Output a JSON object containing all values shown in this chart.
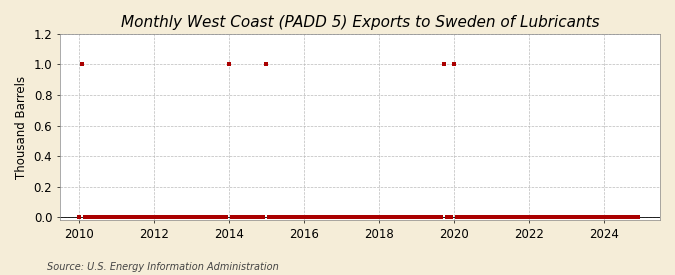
{
  "title": "Monthly West Coast (PADD 5) Exports to Sweden of Lubricants",
  "ylabel": "Thousand Barrels",
  "source": "Source: U.S. Energy Information Administration",
  "xlim": [
    2009.5,
    2025.5
  ],
  "ylim": [
    -0.02,
    1.2
  ],
  "yticks": [
    0.0,
    0.2,
    0.4,
    0.6,
    0.8,
    1.0,
    1.2
  ],
  "xticks": [
    2010,
    2012,
    2014,
    2016,
    2018,
    2020,
    2022,
    2024
  ],
  "background_color": "#f5edd8",
  "plot_bg_color": "#ffffff",
  "marker_color": "#aa0000",
  "line_color": "#aa0000",
  "grid_color": "#bbbbbb",
  "title_fontsize": 11,
  "label_fontsize": 8.5,
  "tick_fontsize": 8.5,
  "data": {
    "dates": [
      2010.0,
      2010.083,
      2010.167,
      2010.25,
      2010.333,
      2010.417,
      2010.5,
      2010.583,
      2010.667,
      2010.75,
      2010.833,
      2010.917,
      2011.0,
      2011.083,
      2011.167,
      2011.25,
      2011.333,
      2011.417,
      2011.5,
      2011.583,
      2011.667,
      2011.75,
      2011.833,
      2011.917,
      2012.0,
      2012.083,
      2012.167,
      2012.25,
      2012.333,
      2012.417,
      2012.5,
      2012.583,
      2012.667,
      2012.75,
      2012.833,
      2012.917,
      2013.0,
      2013.083,
      2013.167,
      2013.25,
      2013.333,
      2013.417,
      2013.5,
      2013.583,
      2013.667,
      2013.75,
      2013.833,
      2013.917,
      2014.0,
      2014.083,
      2014.167,
      2014.25,
      2014.333,
      2014.417,
      2014.5,
      2014.583,
      2014.667,
      2014.75,
      2014.833,
      2014.917,
      2015.0,
      2015.083,
      2015.167,
      2015.25,
      2015.333,
      2015.417,
      2015.5,
      2015.583,
      2015.667,
      2015.75,
      2015.833,
      2015.917,
      2016.0,
      2016.083,
      2016.167,
      2016.25,
      2016.333,
      2016.417,
      2016.5,
      2016.583,
      2016.667,
      2016.75,
      2016.833,
      2016.917,
      2017.0,
      2017.083,
      2017.167,
      2017.25,
      2017.333,
      2017.417,
      2017.5,
      2017.583,
      2017.667,
      2017.75,
      2017.833,
      2017.917,
      2018.0,
      2018.083,
      2018.167,
      2018.25,
      2018.333,
      2018.417,
      2018.5,
      2018.583,
      2018.667,
      2018.75,
      2018.833,
      2018.917,
      2019.0,
      2019.083,
      2019.167,
      2019.25,
      2019.333,
      2019.417,
      2019.5,
      2019.583,
      2019.667,
      2019.75,
      2019.833,
      2019.917,
      2020.0,
      2020.083,
      2020.167,
      2020.25,
      2020.333,
      2020.417,
      2020.5,
      2020.583,
      2020.667,
      2020.75,
      2020.833,
      2020.917,
      2021.0,
      2021.083,
      2021.167,
      2021.25,
      2021.333,
      2021.417,
      2021.5,
      2021.583,
      2021.667,
      2021.75,
      2021.833,
      2021.917,
      2022.0,
      2022.083,
      2022.167,
      2022.25,
      2022.333,
      2022.417,
      2022.5,
      2022.583,
      2022.667,
      2022.75,
      2022.833,
      2022.917,
      2023.0,
      2023.083,
      2023.167,
      2023.25,
      2023.333,
      2023.417,
      2023.5,
      2023.583,
      2023.667,
      2023.75,
      2023.833,
      2023.917,
      2024.0,
      2024.083,
      2024.167,
      2024.25,
      2024.333,
      2024.417,
      2024.5,
      2024.583,
      2024.667,
      2024.75,
      2024.833,
      2024.917
    ],
    "values": [
      0.0,
      1.0,
      0.0,
      0.0,
      0.0,
      0.0,
      0.0,
      0.0,
      0.0,
      0.0,
      0.0,
      0.0,
      0.0,
      0.0,
      0.0,
      0.0,
      0.0,
      0.0,
      0.0,
      0.0,
      0.0,
      0.0,
      0.0,
      0.0,
      0.0,
      0.0,
      0.0,
      0.0,
      0.0,
      0.0,
      0.0,
      0.0,
      0.0,
      0.0,
      0.0,
      0.0,
      0.0,
      0.0,
      0.0,
      0.0,
      0.0,
      0.0,
      0.0,
      0.0,
      0.0,
      0.0,
      0.0,
      0.0,
      1.0,
      0.0,
      0.0,
      0.0,
      0.0,
      0.0,
      0.0,
      0.0,
      0.0,
      0.0,
      0.0,
      0.0,
      1.0,
      0.0,
      0.0,
      0.0,
      0.0,
      0.0,
      0.0,
      0.0,
      0.0,
      0.0,
      0.0,
      0.0,
      0.0,
      0.0,
      0.0,
      0.0,
      0.0,
      0.0,
      0.0,
      0.0,
      0.0,
      0.0,
      0.0,
      0.0,
      0.0,
      0.0,
      0.0,
      0.0,
      0.0,
      0.0,
      0.0,
      0.0,
      0.0,
      0.0,
      0.0,
      0.0,
      0.0,
      0.0,
      0.0,
      0.0,
      0.0,
      0.0,
      0.0,
      0.0,
      0.0,
      0.0,
      0.0,
      0.0,
      0.0,
      0.0,
      0.0,
      0.0,
      0.0,
      0.0,
      0.0,
      0.0,
      0.0,
      1.0,
      0.0,
      0.0,
      1.0,
      0.0,
      0.0,
      0.0,
      0.0,
      0.0,
      0.0,
      0.0,
      0.0,
      0.0,
      0.0,
      0.0,
      0.0,
      0.0,
      0.0,
      0.0,
      0.0,
      0.0,
      0.0,
      0.0,
      0.0,
      0.0,
      0.0,
      0.0,
      0.0,
      0.0,
      0.0,
      0.0,
      0.0,
      0.0,
      0.0,
      0.0,
      0.0,
      0.0,
      0.0,
      0.0,
      0.0,
      0.0,
      0.0,
      0.0,
      0.0,
      0.0,
      0.0,
      0.0,
      0.0,
      0.0,
      0.0,
      0.0,
      0.0,
      0.0,
      0.0,
      0.0,
      0.0,
      0.0,
      0.0,
      0.0,
      0.0,
      0.0,
      0.0,
      0.0
    ]
  }
}
